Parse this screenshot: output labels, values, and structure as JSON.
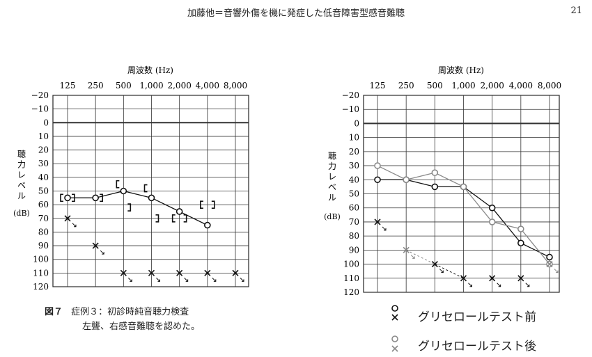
{
  "header": {
    "title": "加藤他＝音響外傷を機に発症した低音障害型感音難聴",
    "page_number": "21"
  },
  "figure7_caption": {
    "label": "図７",
    "line1": "症例３：初診時純音聴力検査",
    "line2": "左聾、右感音難聴を認めた。"
  },
  "legend": {
    "before": "グリセロールテスト前",
    "after": "グリセロールテスト後"
  },
  "colors": {
    "primary": "#111111",
    "secondary": "#8a8a8a"
  },
  "chart_data": [
    {
      "type": "line",
      "title": "周波数 (Hz)",
      "xlabel": "周波数 (Hz)",
      "ylabel": "聴力レベル (dB)",
      "categories": [
        "125",
        "250",
        "500",
        "1,000",
        "2,000",
        "4,000",
        "8,000"
      ],
      "ylim": [
        -20,
        120
      ],
      "y_ticks": [
        -20,
        -10,
        0,
        10,
        20,
        30,
        40,
        50,
        60,
        70,
        80,
        90,
        100,
        110,
        120
      ],
      "series": [
        {
          "symbol": "O",
          "values": [
            55,
            55,
            50,
            55,
            65,
            75,
            null
          ],
          "connected": true
        },
        {
          "symbol": "X",
          "values": [
            70,
            90,
            110,
            110,
            110,
            110,
            110
          ],
          "connected": false,
          "scale_out": [
            true,
            true,
            true,
            true,
            true,
            true,
            true
          ]
        },
        {
          "symbol": "[",
          "values": [
            null,
            null,
            45,
            null,
            null,
            null,
            null
          ]
        },
        {
          "symbol": "]",
          "values": [
            null,
            null,
            62,
            null,
            70,
            60,
            null
          ]
        },
        {
          "symbol": "[",
          "values": [
            null,
            null,
            null,
            48,
            70,
            null,
            null
          ]
        },
        {
          "symbol": "]",
          "values": [
            55,
            55,
            null,
            null,
            null,
            null,
            null
          ]
        },
        {
          "symbol": "[",
          "values": [
            55,
            null,
            null,
            null,
            null,
            60,
            null
          ]
        },
        {
          "symbol": "]",
          "values": [
            null,
            null,
            null,
            70,
            null,
            null,
            null
          ]
        }
      ]
    },
    {
      "type": "line",
      "title": "周波数 (Hz)",
      "xlabel": "周波数 (Hz)",
      "ylabel": "聴力レベル (dB)",
      "categories": [
        "125",
        "250",
        "500",
        "1,000",
        "2,000",
        "4,000",
        "8,000"
      ],
      "ylim": [
        -20,
        120
      ],
      "y_ticks": [
        -20,
        -10,
        0,
        10,
        20,
        30,
        40,
        50,
        60,
        70,
        80,
        90,
        100,
        110,
        120
      ],
      "series": [
        {
          "name": "グリセロールテスト前",
          "symbol": "O",
          "color": "#111111",
          "values": [
            40,
            40,
            45,
            45,
            60,
            85,
            95
          ],
          "connected": true
        },
        {
          "name": "グリセロールテスト後",
          "symbol": "O",
          "color": "#8a8a8a",
          "values": [
            30,
            40,
            35,
            45,
            70,
            75,
            100
          ],
          "connected": true
        },
        {
          "name": "グリセロールテスト前",
          "symbol": "X",
          "color": "#111111",
          "values": [
            70,
            null,
            100,
            110,
            110,
            110,
            null
          ],
          "connected": false
        },
        {
          "name": "グリセロールテスト後",
          "symbol": "X",
          "color": "#8a8a8a",
          "values": [
            null,
            90,
            null,
            null,
            null,
            null,
            100
          ],
          "connected": false
        }
      ]
    }
  ]
}
